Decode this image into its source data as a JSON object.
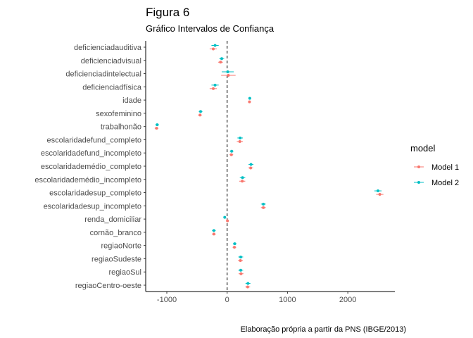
{
  "chart_data": {
    "type": "scatter",
    "subtype": "coefficient-plot-with-confidence-intervals",
    "title": "Figura 6",
    "subtitle": "Gráfico Intervalos de Confiança",
    "caption": "Elaboração própria a partir da PNS (IBGE/2013)",
    "xlabel": "",
    "ylabel": "",
    "xlim": [
      -1350,
      2780
    ],
    "xticks": [
      -1000,
      0,
      1000,
      2000
    ],
    "xtick_labels": [
      "-1000",
      "0",
      "1000",
      "2000"
    ],
    "reference_line_x": 0,
    "grid": false,
    "legend": {
      "title": "model",
      "position": "right",
      "entries": [
        "Model 1",
        "Model 2"
      ]
    },
    "colors": {
      "Model 1": "#F8766D",
      "Model 2": "#00BFC4"
    },
    "categories": [
      "deficienciadauditiva",
      "deficienciadvisual",
      "deficienciadintelectual",
      "deficienciadfísica",
      "idade",
      "sexofeminino",
      "trabalhonão",
      "escolaridadefund_completo",
      "escolaridadefund_incompleto",
      "escolaridademédio_completo",
      "escolaridademédio_incompleto",
      "escolaridadesup_completo",
      "escolaridadesup_incompleto",
      "renda_domiciliar",
      "cornão_branco",
      "regiaoNorte",
      "regiaoSudeste",
      "regiaoSul",
      "regiaoCentro-oeste"
    ],
    "series": [
      {
        "name": "Model 1",
        "values": [
          -230,
          -110,
          20,
          -230,
          370,
          -450,
          -1170,
          210,
          70,
          390,
          250,
          2530,
          600,
          5,
          -220,
          120,
          220,
          230,
          340
        ],
        "ci_low": [
          -290,
          -150,
          -100,
          -290,
          350,
          -480,
          -1200,
          160,
          40,
          350,
          200,
          2470,
          560,
          0,
          -250,
          90,
          180,
          190,
          300
        ],
        "ci_high": [
          -170,
          -70,
          140,
          -170,
          390,
          -420,
          -1140,
          260,
          100,
          430,
          300,
          2590,
          640,
          10,
          -190,
          150,
          260,
          270,
          380
        ]
      },
      {
        "name": "Model 2",
        "values": [
          -200,
          -90,
          10,
          -200,
          375,
          -440,
          -1160,
          215,
          75,
          395,
          255,
          2500,
          600,
          -40,
          -220,
          125,
          225,
          225,
          345
        ],
        "ci_low": [
          -260,
          -130,
          -90,
          -260,
          355,
          -470,
          -1190,
          170,
          45,
          355,
          210,
          2440,
          560,
          -45,
          -250,
          95,
          185,
          185,
          305
        ],
        "ci_high": [
          -140,
          -50,
          110,
          -140,
          395,
          -410,
          -1130,
          260,
          105,
          435,
          300,
          2560,
          640,
          -35,
          -190,
          155,
          265,
          265,
          385
        ]
      }
    ]
  }
}
